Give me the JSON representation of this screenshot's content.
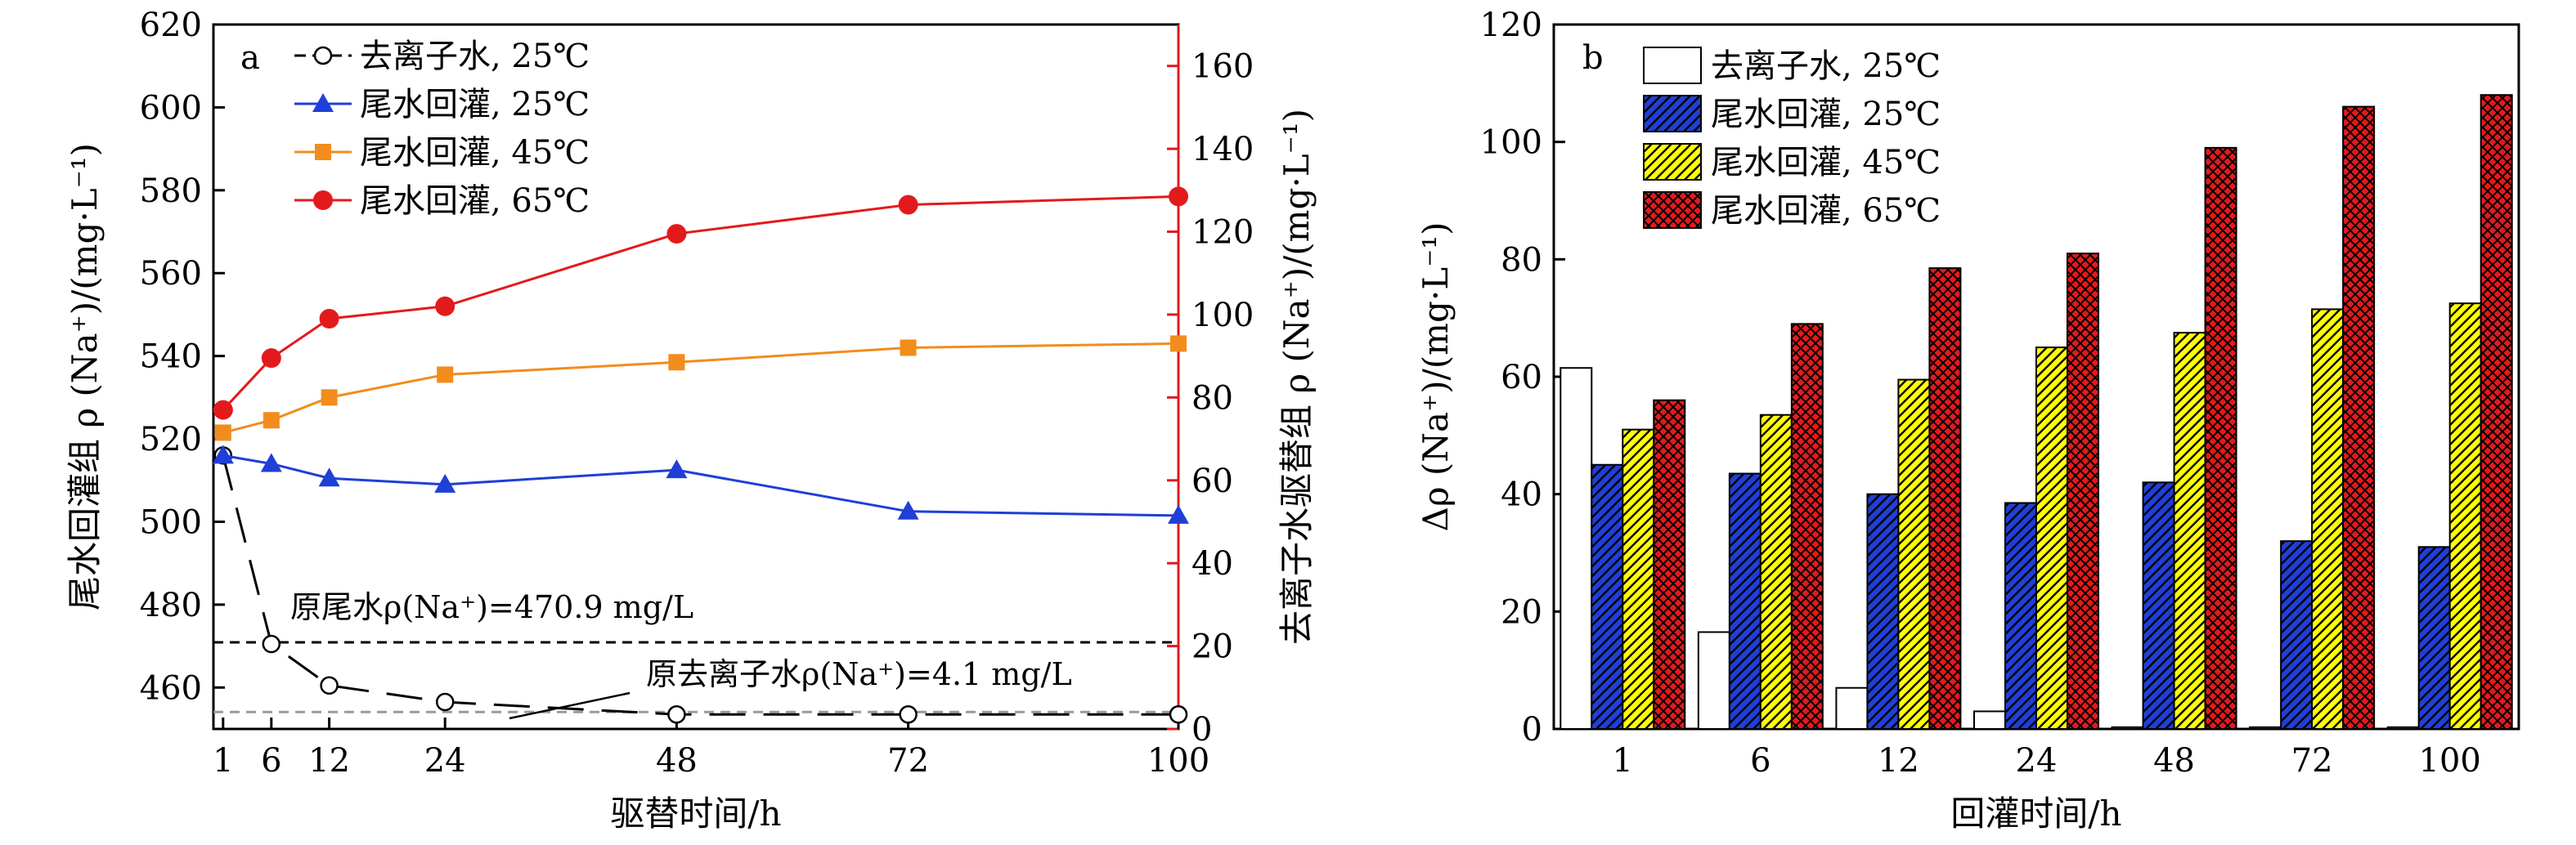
{
  "chart_data": [
    {
      "type": "line",
      "panel_label": "a",
      "xlabel": "驱替时间/h",
      "ylabel_left": "尾水回灌组 ρ (Na⁺)/(mg·L⁻¹)",
      "ylabel_right": "去离子水驱替组 ρ (Na⁺)/(mg·L⁻¹)",
      "x": [
        1,
        6,
        12,
        24,
        48,
        72,
        100
      ],
      "xticks": [
        "1",
        "6",
        "12",
        "24",
        "48",
        "72",
        "100"
      ],
      "xlim": [
        0,
        100
      ],
      "ylim_left": [
        450,
        620
      ],
      "yticks_left": [
        "460",
        "480",
        "500",
        "520",
        "540",
        "560",
        "580",
        "600",
        "620"
      ],
      "ylim_right": [
        0,
        170
      ],
      "yticks_right": [
        "0",
        "20",
        "40",
        "60",
        "80",
        "100",
        "120",
        "140",
        "160"
      ],
      "series": [
        {
          "name": "去离子水, 25℃",
          "axis": "right",
          "color": "#000000",
          "marker": "circle-open",
          "dash": true,
          "values": [
            66,
            20.5,
            10.5,
            6.5,
            3.5,
            3.5,
            3.5
          ]
        },
        {
          "name": "尾水回灌, 25℃",
          "axis": "left",
          "color": "#1f3fd6",
          "marker": "triangle",
          "values": [
            516,
            514,
            510.5,
            509,
            512.5,
            502.5,
            501.5
          ]
        },
        {
          "name": "尾水回灌, 45℃",
          "axis": "left",
          "color": "#f28c1d",
          "marker": "square",
          "values": [
            521.5,
            524.5,
            530,
            535.5,
            538.5,
            542,
            543
          ]
        },
        {
          "name": "尾水回灌, 65℃",
          "axis": "left",
          "color": "#e31a1c",
          "marker": "circle",
          "values": [
            527,
            539.5,
            549,
            552,
            569.5,
            576.5,
            578.5
          ]
        }
      ],
      "reference_lines": [
        {
          "label": "原尾水ρ(Na⁺)=470.9 mg/L",
          "axis": "left",
          "value": 470.9,
          "color": "#000000"
        },
        {
          "label": "原去离子水ρ(Na⁺)=4.1 mg/L",
          "axis": "right",
          "value": 4.1,
          "color": "#9a9a9a"
        }
      ]
    },
    {
      "type": "bar",
      "panel_label": "b",
      "xlabel": "回灌时间/h",
      "ylabel": "Δρ (Na⁺)/(mg·L⁻¹)",
      "categories": [
        "1",
        "6",
        "12",
        "24",
        "48",
        "72",
        "100"
      ],
      "ylim": [
        0,
        120
      ],
      "yticks": [
        "0",
        "20",
        "40",
        "60",
        "80",
        "100",
        "120"
      ],
      "series": [
        {
          "name": "去离子水, 25℃",
          "fill": "#ffffff",
          "pattern": "none",
          "values": [
            61.5,
            16.5,
            7,
            3,
            0.3,
            0.3,
            0.3
          ]
        },
        {
          "name": "尾水回灌, 25℃",
          "fill": "#1f3fd6",
          "pattern": "hatch",
          "values": [
            45,
            43.5,
            40,
            38.5,
            42,
            32,
            31
          ]
        },
        {
          "name": "尾水回灌, 45℃",
          "fill": "#ffff00",
          "pattern": "hatch",
          "values": [
            51,
            53.5,
            59.5,
            65,
            67.5,
            71.5,
            72.5
          ]
        },
        {
          "name": "尾水回灌, 65℃",
          "fill": "#e31a1c",
          "pattern": "crosshatch",
          "values": [
            56,
            69,
            78.5,
            81,
            99,
            106,
            108
          ]
        }
      ]
    }
  ]
}
